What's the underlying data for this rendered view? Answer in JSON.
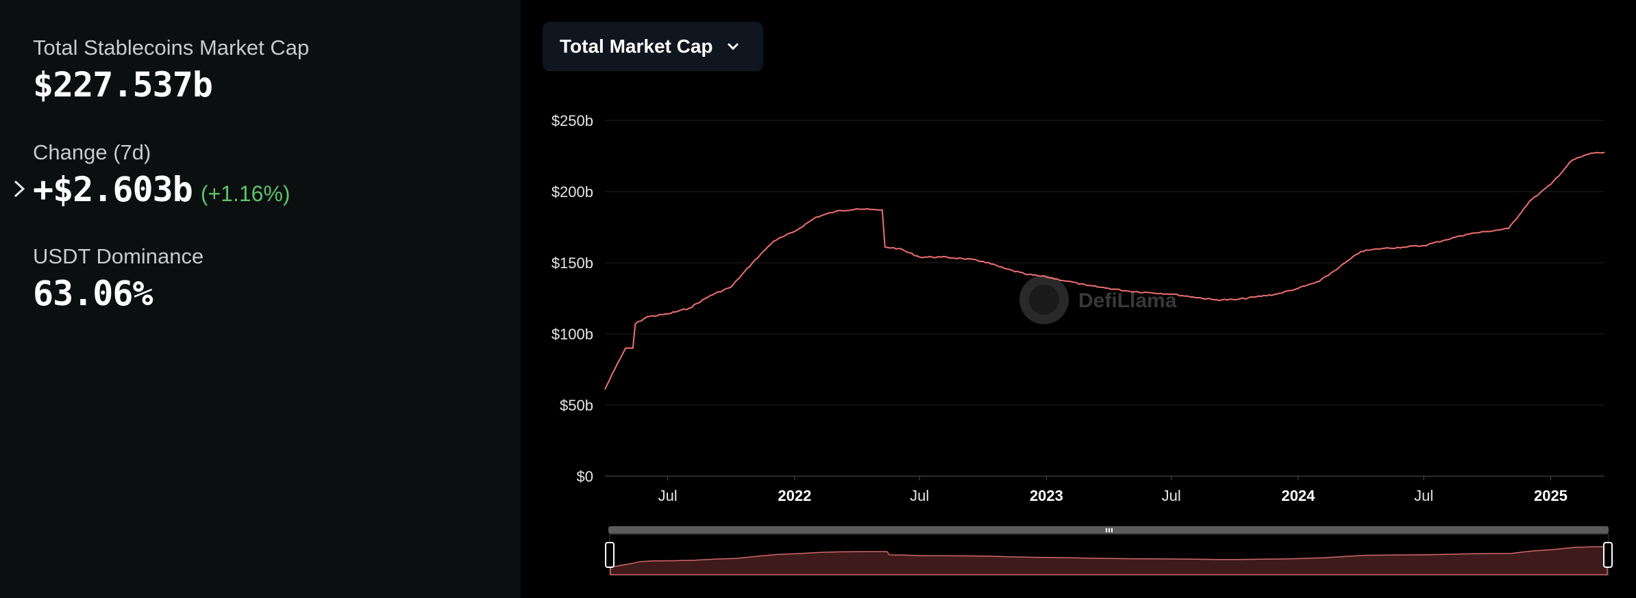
{
  "stats": {
    "market_cap_label": "Total Stablecoins Market Cap",
    "market_cap_value": "$227.537b",
    "change_label": "Change (7d)",
    "change_value": "+$2.603b",
    "change_pct": "(+1.16%)",
    "dominance_label": "USDT Dominance",
    "dominance_value": "63.06%"
  },
  "dropdown": {
    "label": "Total Market Cap"
  },
  "watermark": "DefiLlama",
  "colors": {
    "line": "#f07070",
    "positive": "#5cc36a",
    "panel": "#0b0f10",
    "background": "#000000"
  },
  "chart_data": {
    "type": "line",
    "series": [
      {
        "values": [
          [
            "2021-04-01",
            61
          ],
          [
            "2021-04-15",
            75
          ],
          [
            "2021-05-01",
            90
          ],
          [
            "2021-05-15",
            107
          ],
          [
            "2021-06-01",
            112
          ],
          [
            "2021-07-01",
            114
          ],
          [
            "2021-08-01",
            118
          ],
          [
            "2021-09-01",
            127
          ],
          [
            "2021-10-01",
            133
          ],
          [
            "2021-11-01",
            150
          ],
          [
            "2021-12-01",
            165
          ],
          [
            "2022-01-01",
            172
          ],
          [
            "2022-02-01",
            182
          ],
          [
            "2022-03-01",
            186
          ],
          [
            "2022-04-01",
            188
          ],
          [
            "2022-05-01",
            187
          ],
          [
            "2022-05-08",
            187
          ],
          [
            "2022-05-12",
            161
          ],
          [
            "2022-06-01",
            160
          ],
          [
            "2022-07-01",
            154
          ],
          [
            "2022-08-01",
            154
          ],
          [
            "2022-09-01",
            153
          ],
          [
            "2022-10-01",
            151
          ],
          [
            "2022-11-01",
            146
          ],
          [
            "2022-12-01",
            142
          ],
          [
            "2023-01-01",
            140
          ],
          [
            "2023-02-01",
            137
          ],
          [
            "2023-03-01",
            134
          ],
          [
            "2023-04-01",
            132
          ],
          [
            "2023-05-01",
            130
          ],
          [
            "2023-06-01",
            129
          ],
          [
            "2023-07-01",
            128
          ],
          [
            "2023-08-01",
            126
          ],
          [
            "2023-09-01",
            124
          ],
          [
            "2023-10-01",
            124
          ],
          [
            "2023-11-01",
            126
          ],
          [
            "2023-12-01",
            128
          ],
          [
            "2024-01-01",
            132
          ],
          [
            "2024-02-01",
            137
          ],
          [
            "2024-03-01",
            147
          ],
          [
            "2024-04-01",
            158
          ],
          [
            "2024-05-01",
            160
          ],
          [
            "2024-06-01",
            161
          ],
          [
            "2024-07-01",
            162
          ],
          [
            "2024-08-01",
            166
          ],
          [
            "2024-09-01",
            170
          ],
          [
            "2024-10-01",
            172
          ],
          [
            "2024-11-01",
            174
          ],
          [
            "2024-12-01",
            193
          ],
          [
            "2025-01-01",
            205
          ],
          [
            "2025-02-01",
            222
          ],
          [
            "2025-03-01",
            227
          ],
          [
            "2025-03-20",
            227.5
          ]
        ]
      }
    ],
    "y_ticks": [
      "$250b",
      "$200b",
      "$150b",
      "$100b",
      "$50b",
      "$0"
    ],
    "y_tick_values": [
      250,
      200,
      150,
      100,
      50,
      0
    ],
    "ylim": [
      0,
      250
    ],
    "x_ticks": [
      {
        "label": "Jul",
        "date": "2021-07-01",
        "bold": false
      },
      {
        "label": "2022",
        "date": "2022-01-01",
        "bold": true
      },
      {
        "label": "Jul",
        "date": "2022-07-01",
        "bold": false
      },
      {
        "label": "2023",
        "date": "2023-01-01",
        "bold": true
      },
      {
        "label": "Jul",
        "date": "2023-07-01",
        "bold": false
      },
      {
        "label": "2024",
        "date": "2024-01-01",
        "bold": true
      },
      {
        "label": "Jul",
        "date": "2024-07-01",
        "bold": false
      },
      {
        "label": "2025",
        "date": "2025-01-01",
        "bold": true
      }
    ],
    "xlim": [
      "2021-04-01",
      "2025-03-20"
    ],
    "grid": true
  }
}
